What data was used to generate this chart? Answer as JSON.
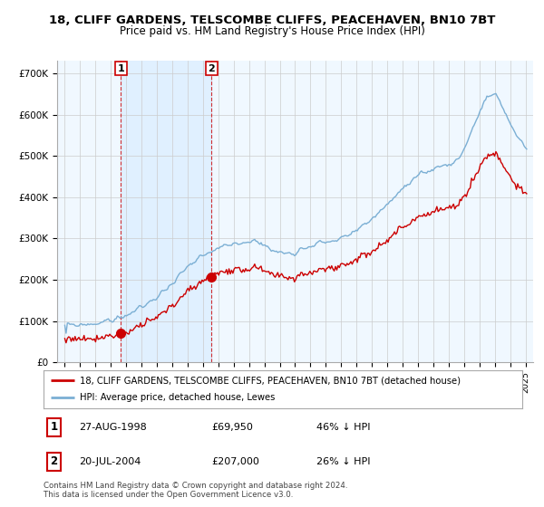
{
  "title_line1": "18, CLIFF GARDENS, TELSCOMBE CLIFFS, PEACEHAVEN, BN10 7BT",
  "title_line2": "Price paid vs. HM Land Registry's House Price Index (HPI)",
  "ylabel_ticks": [
    "£0",
    "£100K",
    "£200K",
    "£300K",
    "£400K",
    "£500K",
    "£600K",
    "£700K"
  ],
  "ytick_values": [
    0,
    100000,
    200000,
    300000,
    400000,
    500000,
    600000,
    700000
  ],
  "ylim": [
    0,
    730000
  ],
  "sale1_x": 1998.65,
  "sale1_price": 69950,
  "sale2_x": 2004.55,
  "sale2_price": 207000,
  "legend_label_red": "18, CLIFF GARDENS, TELSCOMBE CLIFFS, PEACEHAVEN, BN10 7BT (detached house)",
  "legend_label_blue": "HPI: Average price, detached house, Lewes",
  "footnote": "Contains HM Land Registry data © Crown copyright and database right 2024.\nThis data is licensed under the Open Government Licence v3.0.",
  "color_red": "#cc0000",
  "color_blue": "#7bafd4",
  "color_vline": "#cc0000",
  "shade_color": "#ddeeff",
  "background_color": "#ffffff",
  "grid_color": "#cccccc",
  "chart_bg": "#f0f8ff"
}
